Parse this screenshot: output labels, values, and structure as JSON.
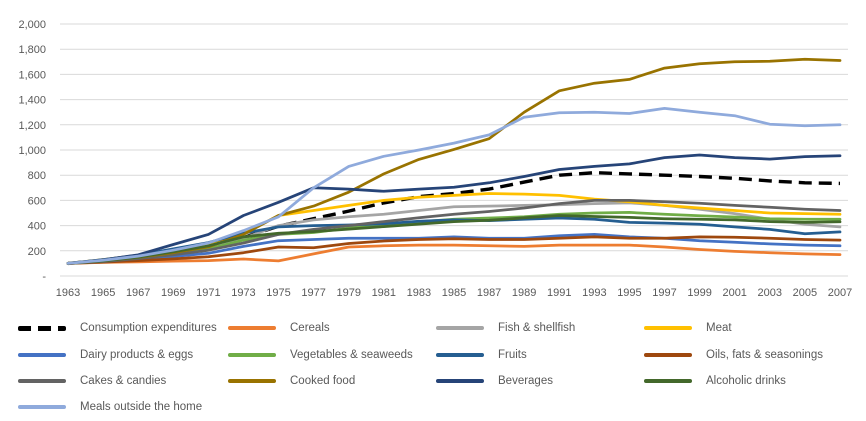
{
  "chart_data": {
    "type": "line",
    "title": "",
    "xlabel": "",
    "ylabel": "",
    "x": [
      1963,
      1965,
      1967,
      1969,
      1971,
      1973,
      1975,
      1977,
      1979,
      1981,
      1983,
      1985,
      1987,
      1989,
      1991,
      1993,
      1995,
      1997,
      1999,
      2001,
      2003,
      2005,
      2007
    ],
    "ylim": [
      0,
      2000
    ],
    "ytick_step": 200,
    "ytick_labels": [
      "-",
      "200",
      "400",
      "600",
      "800",
      "1,000",
      "1,200",
      "1,400",
      "1,600",
      "1,800",
      "2,000"
    ],
    "grid": true,
    "legend_position": "bottom",
    "axis_text_color": "#595959",
    "gridline_color": "#D9D9D9",
    "series": [
      {
        "name": "Consumption expenditures",
        "color": "#000000",
        "dashed": true,
        "values": [
          100,
          125,
          150,
          185,
          235,
          305,
          395,
          455,
          515,
          580,
          630,
          655,
          690,
          745,
          800,
          820,
          810,
          800,
          790,
          775,
          755,
          740,
          735
        ]
      },
      {
        "name": "Cereals",
        "color": "#ED7D31",
        "dashed": false,
        "values": [
          100,
          108,
          112,
          118,
          122,
          135,
          120,
          175,
          230,
          240,
          245,
          245,
          240,
          235,
          245,
          245,
          245,
          230,
          210,
          195,
          185,
          175,
          170
        ]
      },
      {
        "name": "Fish & shellfish",
        "color": "#A5A5A5",
        "dashed": false,
        "values": [
          100,
          120,
          145,
          180,
          220,
          300,
          400,
          445,
          470,
          490,
          520,
          550,
          555,
          560,
          565,
          575,
          580,
          560,
          530,
          495,
          450,
          410,
          390
        ]
      },
      {
        "name": "Meat",
        "color": "#FFC000",
        "dashed": false,
        "values": [
          100,
          130,
          165,
          205,
          255,
          335,
          480,
          520,
          560,
          600,
          625,
          640,
          655,
          650,
          640,
          610,
          590,
          560,
          540,
          520,
          500,
          495,
          490
        ]
      },
      {
        "name": "Dairy products & eggs",
        "color": "#4472C4",
        "dashed": false,
        "values": [
          100,
          115,
          130,
          155,
          180,
          235,
          280,
          290,
          300,
          300,
          300,
          310,
          300,
          300,
          320,
          330,
          310,
          300,
          280,
          268,
          255,
          245,
          240
        ]
      },
      {
        "name": "Vegetables & seaweeds",
        "color": "#70AD47",
        "dashed": false,
        "values": [
          100,
          120,
          148,
          178,
          215,
          285,
          330,
          345,
          380,
          410,
          430,
          450,
          460,
          470,
          490,
          500,
          505,
          490,
          478,
          468,
          455,
          450,
          450
        ]
      },
      {
        "name": "Fruits",
        "color": "#255E91",
        "dashed": false,
        "values": [
          100,
          130,
          165,
          215,
          265,
          340,
          390,
          400,
          405,
          415,
          435,
          445,
          440,
          450,
          460,
          450,
          425,
          420,
          410,
          390,
          370,
          335,
          350
        ]
      },
      {
        "name": "Oils, fats & seasonings",
        "color": "#9E480E",
        "dashed": false,
        "values": [
          100,
          110,
          122,
          136,
          152,
          185,
          230,
          225,
          258,
          278,
          290,
          295,
          290,
          290,
          300,
          310,
          300,
          300,
          310,
          308,
          300,
          290,
          285
        ]
      },
      {
        "name": "Cakes & candies",
        "color": "#636363",
        "dashed": false,
        "values": [
          100,
          115,
          138,
          168,
          205,
          262,
          330,
          370,
          400,
          432,
          462,
          490,
          512,
          540,
          575,
          600,
          600,
          590,
          578,
          560,
          545,
          530,
          520
        ]
      },
      {
        "name": "Cooked food",
        "color": "#997300",
        "dashed": false,
        "values": [
          100,
          122,
          148,
          185,
          232,
          330,
          480,
          555,
          665,
          810,
          925,
          1005,
          1090,
          1300,
          1470,
          1530,
          1560,
          1650,
          1685,
          1700,
          1705,
          1720,
          1710
        ]
      },
      {
        "name": "Beverages",
        "color": "#264478",
        "dashed": false,
        "values": [
          100,
          128,
          168,
          250,
          330,
          480,
          585,
          700,
          690,
          672,
          690,
          705,
          740,
          790,
          845,
          870,
          890,
          940,
          960,
          940,
          928,
          948,
          955
        ]
      },
      {
        "name": "Alcoholic drinks",
        "color": "#43682B",
        "dashed": false,
        "values": [
          100,
          120,
          150,
          192,
          240,
          310,
          340,
          352,
          372,
          392,
          412,
          432,
          442,
          462,
          480,
          472,
          465,
          455,
          450,
          445,
          432,
          425,
          430
        ]
      },
      {
        "name": "Meals outside the home",
        "color": "#8FAADC",
        "dashed": false,
        "values": [
          100,
          125,
          158,
          205,
          262,
          360,
          470,
          700,
          870,
          950,
          1000,
          1055,
          1120,
          1260,
          1295,
          1300,
          1290,
          1330,
          1300,
          1272,
          1205,
          1192,
          1200
        ]
      }
    ]
  }
}
